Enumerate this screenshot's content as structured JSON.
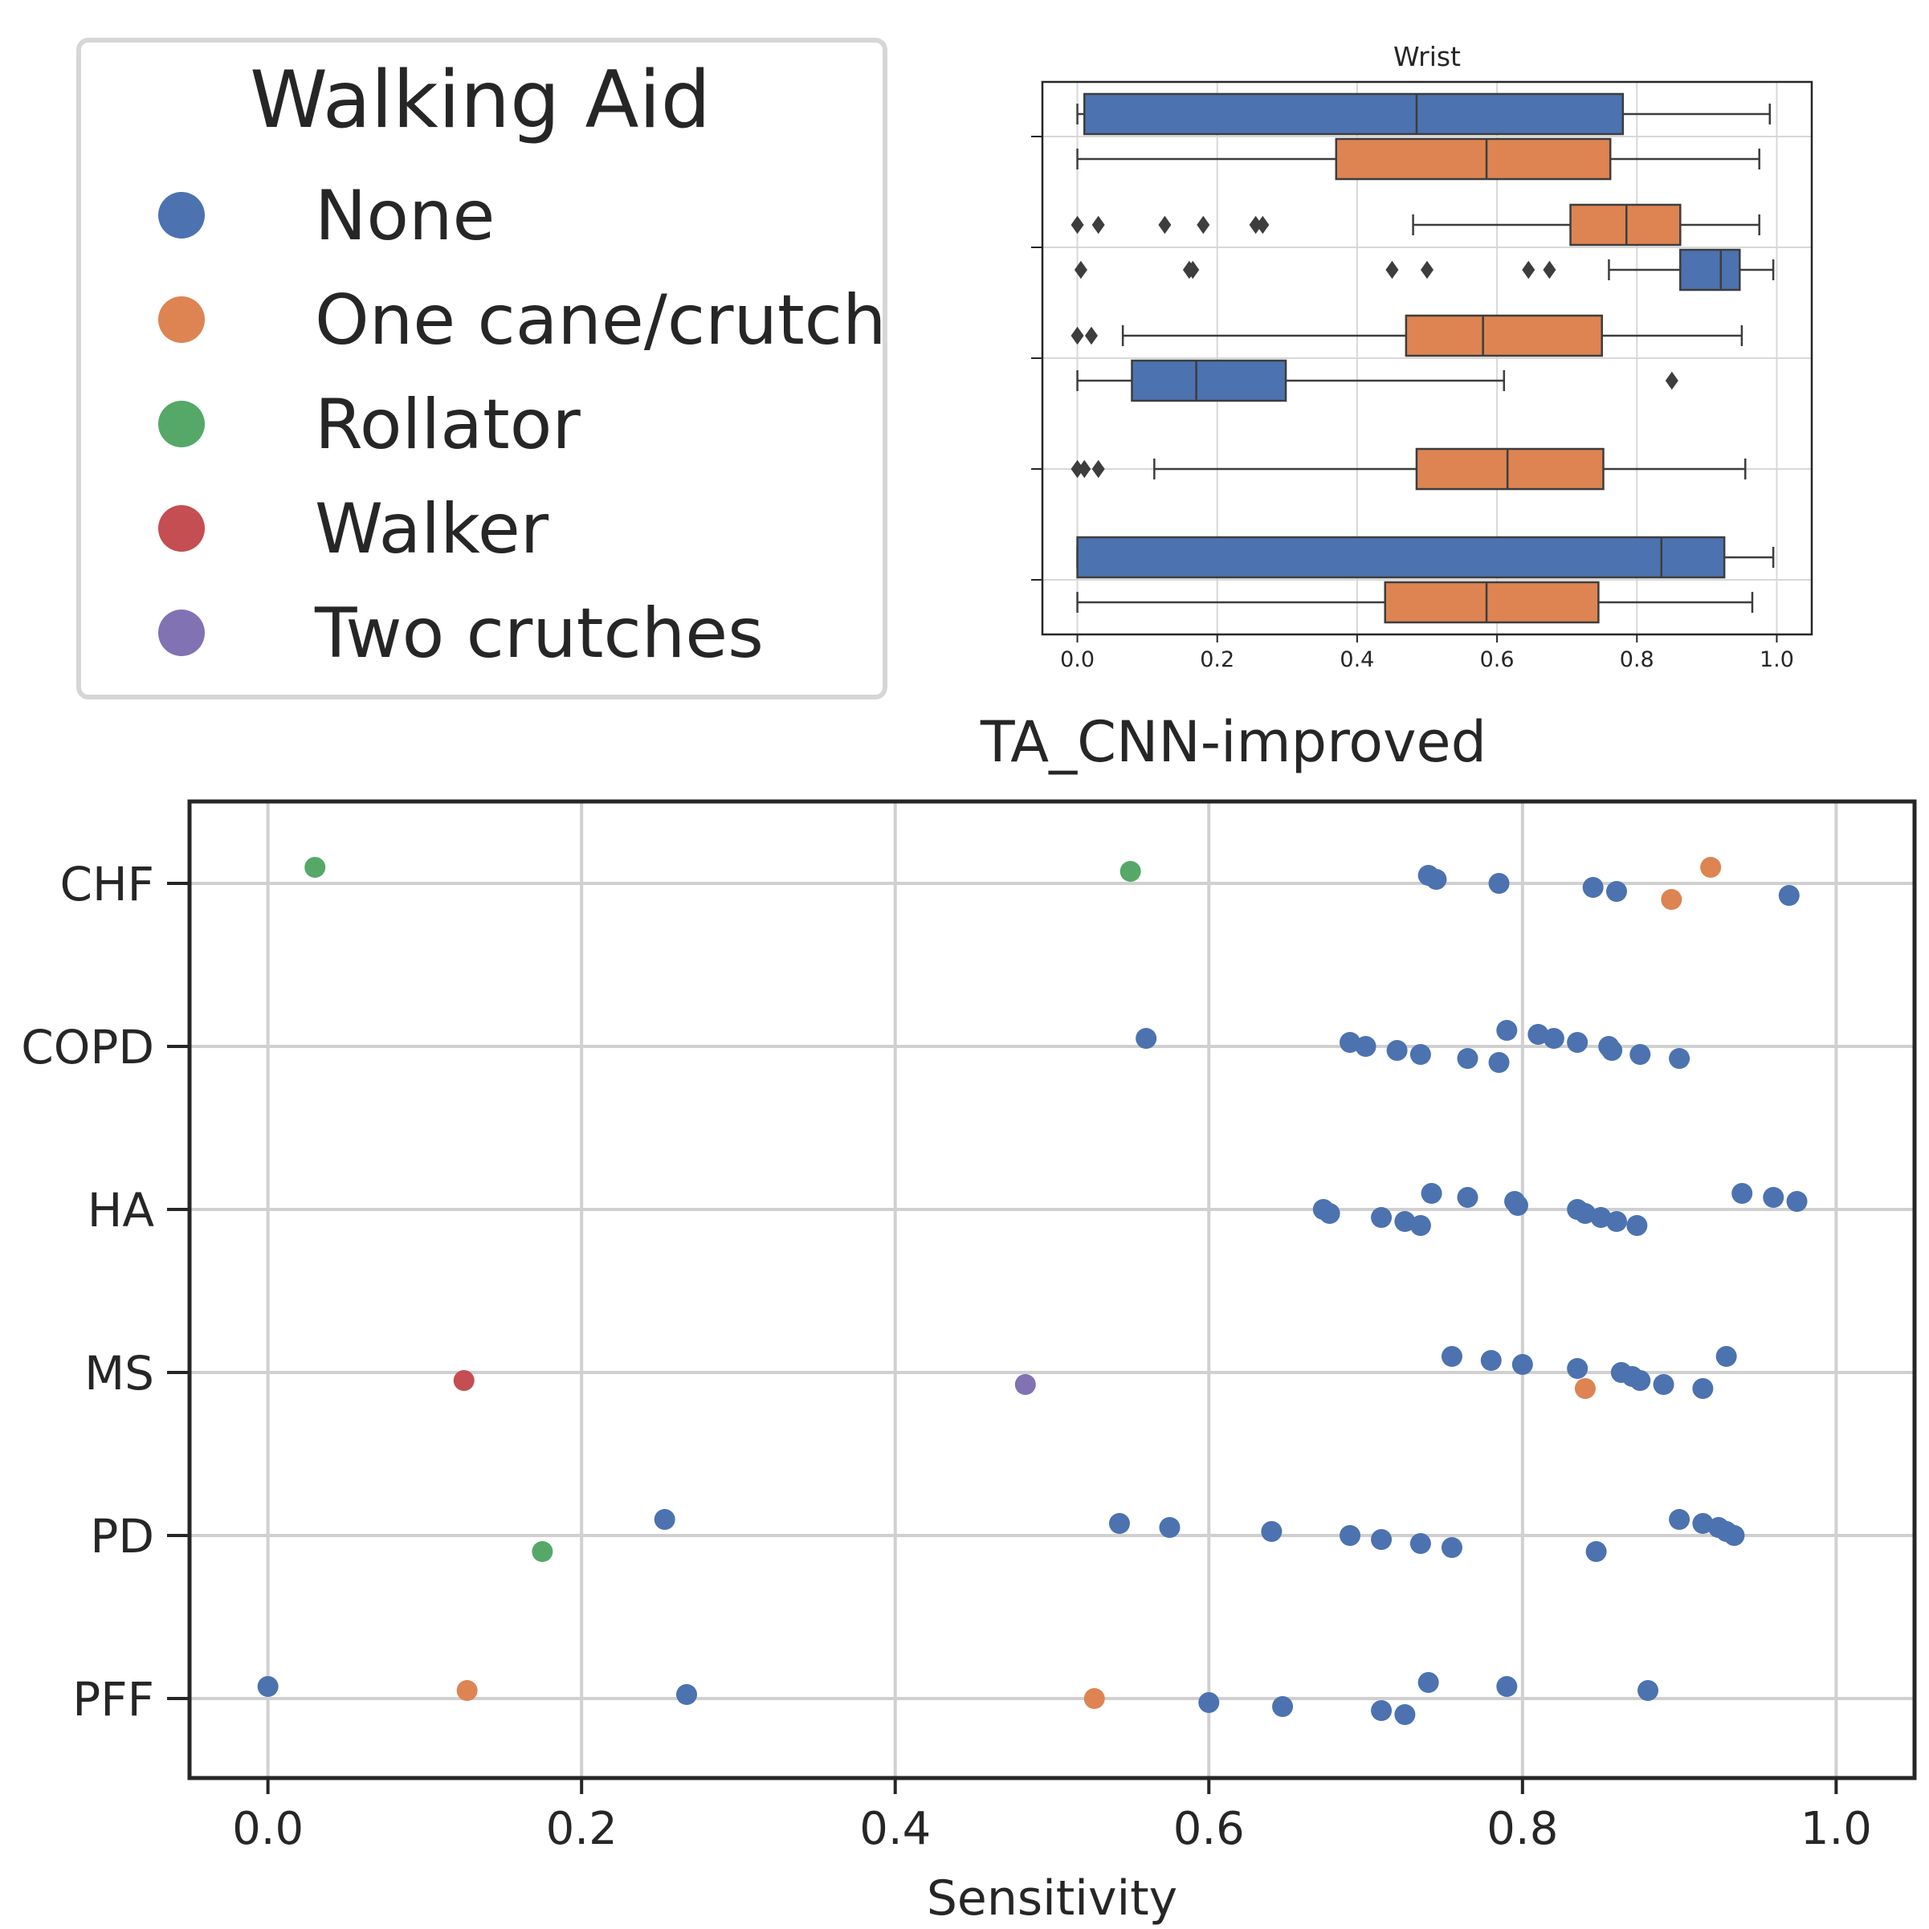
{
  "legend": {
    "title": "Walking Aid",
    "items": [
      {
        "label": "None",
        "color": "#4c72b0"
      },
      {
        "label": "One cane/crutch",
        "color": "#dd8452"
      },
      {
        "label": "Rollator",
        "color": "#55a868"
      },
      {
        "label": "Walker",
        "color": "#c44e52"
      },
      {
        "label": "Two crutches",
        "color": "#8172b3"
      }
    ]
  },
  "chart_data": [
    {
      "type": "scatter",
      "title": "TA_CNN-improved",
      "xlabel": "Sensitivity",
      "ylabel": "",
      "xlim": [
        -0.05,
        1.05
      ],
      "xticks": [
        "0.0",
        "0.2",
        "0.4",
        "0.6",
        "0.8",
        "1.0"
      ],
      "categories": [
        "CHF",
        "COPD",
        "HA",
        "MS",
        "PD",
        "PFF"
      ],
      "grid": true,
      "points": {
        "CHF": [
          {
            "x": 0.03,
            "aid": "Rollator"
          },
          {
            "x": 0.55,
            "aid": "Rollator"
          },
          {
            "x": 0.74,
            "aid": "None"
          },
          {
            "x": 0.745,
            "aid": "None"
          },
          {
            "x": 0.785,
            "aid": "None"
          },
          {
            "x": 0.845,
            "aid": "None"
          },
          {
            "x": 0.86,
            "aid": "None"
          },
          {
            "x": 0.97,
            "aid": "None"
          },
          {
            "x": 0.895,
            "aid": "One cane/crutch"
          },
          {
            "x": 0.92,
            "aid": "One cane/crutch"
          }
        ],
        "COPD": [
          {
            "x": 0.56,
            "aid": "None"
          },
          {
            "x": 0.69,
            "aid": "None"
          },
          {
            "x": 0.7,
            "aid": "None"
          },
          {
            "x": 0.72,
            "aid": "None"
          },
          {
            "x": 0.735,
            "aid": "None"
          },
          {
            "x": 0.765,
            "aid": "None"
          },
          {
            "x": 0.785,
            "aid": "None"
          },
          {
            "x": 0.79,
            "aid": "None"
          },
          {
            "x": 0.81,
            "aid": "None"
          },
          {
            "x": 0.82,
            "aid": "None"
          },
          {
            "x": 0.835,
            "aid": "None"
          },
          {
            "x": 0.855,
            "aid": "None"
          },
          {
            "x": 0.857,
            "aid": "None"
          },
          {
            "x": 0.875,
            "aid": "None"
          },
          {
            "x": 0.9,
            "aid": "None"
          }
        ],
        "HA": [
          {
            "x": 0.673,
            "aid": "None"
          },
          {
            "x": 0.677,
            "aid": "None"
          },
          {
            "x": 0.71,
            "aid": "None"
          },
          {
            "x": 0.725,
            "aid": "None"
          },
          {
            "x": 0.735,
            "aid": "None"
          },
          {
            "x": 0.742,
            "aid": "None"
          },
          {
            "x": 0.765,
            "aid": "None"
          },
          {
            "x": 0.795,
            "aid": "None"
          },
          {
            "x": 0.797,
            "aid": "None"
          },
          {
            "x": 0.835,
            "aid": "None"
          },
          {
            "x": 0.84,
            "aid": "None"
          },
          {
            "x": 0.85,
            "aid": "None"
          },
          {
            "x": 0.86,
            "aid": "None"
          },
          {
            "x": 0.873,
            "aid": "None"
          },
          {
            "x": 0.94,
            "aid": "None"
          },
          {
            "x": 0.96,
            "aid": "None"
          },
          {
            "x": 0.975,
            "aid": "None"
          }
        ],
        "MS": [
          {
            "x": 0.125,
            "aid": "Walker"
          },
          {
            "x": 0.483,
            "aid": "Two crutches"
          },
          {
            "x": 0.84,
            "aid": "One cane/crutch"
          },
          {
            "x": 0.755,
            "aid": "None"
          },
          {
            "x": 0.78,
            "aid": "None"
          },
          {
            "x": 0.8,
            "aid": "None"
          },
          {
            "x": 0.835,
            "aid": "None"
          },
          {
            "x": 0.863,
            "aid": "None"
          },
          {
            "x": 0.87,
            "aid": "None"
          },
          {
            "x": 0.875,
            "aid": "None"
          },
          {
            "x": 0.89,
            "aid": "None"
          },
          {
            "x": 0.915,
            "aid": "None"
          },
          {
            "x": 0.93,
            "aid": "None"
          }
        ],
        "PD": [
          {
            "x": 0.175,
            "aid": "Rollator"
          },
          {
            "x": 0.253,
            "aid": "None"
          },
          {
            "x": 0.543,
            "aid": "None"
          },
          {
            "x": 0.575,
            "aid": "None"
          },
          {
            "x": 0.64,
            "aid": "None"
          },
          {
            "x": 0.69,
            "aid": "None"
          },
          {
            "x": 0.71,
            "aid": "None"
          },
          {
            "x": 0.735,
            "aid": "None"
          },
          {
            "x": 0.755,
            "aid": "None"
          },
          {
            "x": 0.847,
            "aid": "None"
          },
          {
            "x": 0.9,
            "aid": "None"
          },
          {
            "x": 0.915,
            "aid": "None"
          },
          {
            "x": 0.925,
            "aid": "None"
          },
          {
            "x": 0.93,
            "aid": "None"
          },
          {
            "x": 0.935,
            "aid": "None"
          }
        ],
        "PFF": [
          {
            "x": 0.0,
            "aid": "None"
          },
          {
            "x": 0.127,
            "aid": "One cane/crutch"
          },
          {
            "x": 0.267,
            "aid": "None"
          },
          {
            "x": 0.527,
            "aid": "One cane/crutch"
          },
          {
            "x": 0.6,
            "aid": "None"
          },
          {
            "x": 0.647,
            "aid": "None"
          },
          {
            "x": 0.71,
            "aid": "None"
          },
          {
            "x": 0.725,
            "aid": "None"
          },
          {
            "x": 0.74,
            "aid": "None"
          },
          {
            "x": 0.79,
            "aid": "None"
          },
          {
            "x": 0.88,
            "aid": "None"
          }
        ]
      }
    },
    {
      "type": "box",
      "title": "Wrist",
      "xlabel": "",
      "ylabel": "",
      "xlim": [
        -0.05,
        1.05
      ],
      "xticks": [
        "0.0",
        "0.2",
        "0.4",
        "0.6",
        "0.8",
        "1.0"
      ],
      "grid": true,
      "boxes": [
        {
          "group": 0,
          "aid": "None",
          "whisker_low": 0.0,
          "q1": 0.01,
          "median": 0.485,
          "q3": 0.78,
          "whisker_high": 0.99,
          "fliers": []
        },
        {
          "group": 0,
          "aid": "One cane/crutch",
          "whisker_low": 0.0,
          "q1": 0.37,
          "median": 0.585,
          "q3": 0.762,
          "whisker_high": 0.975,
          "fliers": []
        },
        {
          "group": 1,
          "aid": "One cane/crutch",
          "whisker_low": 0.48,
          "q1": 0.705,
          "median": 0.785,
          "q3": 0.862,
          "whisker_high": 0.975,
          "fliers": [
            0.0,
            0.03,
            0.125,
            0.18,
            0.255,
            0.265
          ]
        },
        {
          "group": 1,
          "aid": "None",
          "whisker_low": 0.76,
          "q1": 0.862,
          "median": 0.92,
          "q3": 0.947,
          "whisker_high": 0.995,
          "fliers": [
            0.005,
            0.16,
            0.165,
            0.45,
            0.5,
            0.645,
            0.675
          ]
        },
        {
          "group": 2,
          "aid": "One cane/crutch",
          "whisker_low": 0.065,
          "q1": 0.47,
          "median": 0.58,
          "q3": 0.75,
          "whisker_high": 0.95,
          "fliers": [
            0.0,
            0.02
          ]
        },
        {
          "group": 2,
          "aid": "None",
          "whisker_low": 0.0,
          "q1": 0.078,
          "median": 0.17,
          "q3": 0.298,
          "whisker_high": 0.61,
          "fliers": [
            0.85
          ]
        },
        {
          "group": 3,
          "aid": "One cane/crutch",
          "whisker_low": 0.11,
          "q1": 0.485,
          "median": 0.615,
          "q3": 0.752,
          "whisker_high": 0.955,
          "fliers": [
            0.0,
            0.01,
            0.03
          ]
        },
        {
          "group": 4,
          "aid": "None",
          "whisker_low": 0.0,
          "q1": 0.0,
          "median": 0.835,
          "q3": 0.925,
          "whisker_high": 0.995,
          "fliers": []
        },
        {
          "group": 4,
          "aid": "One cane/crutch",
          "whisker_low": 0.0,
          "q1": 0.44,
          "median": 0.585,
          "q3": 0.745,
          "whisker_high": 0.965,
          "fliers": []
        }
      ]
    }
  ]
}
